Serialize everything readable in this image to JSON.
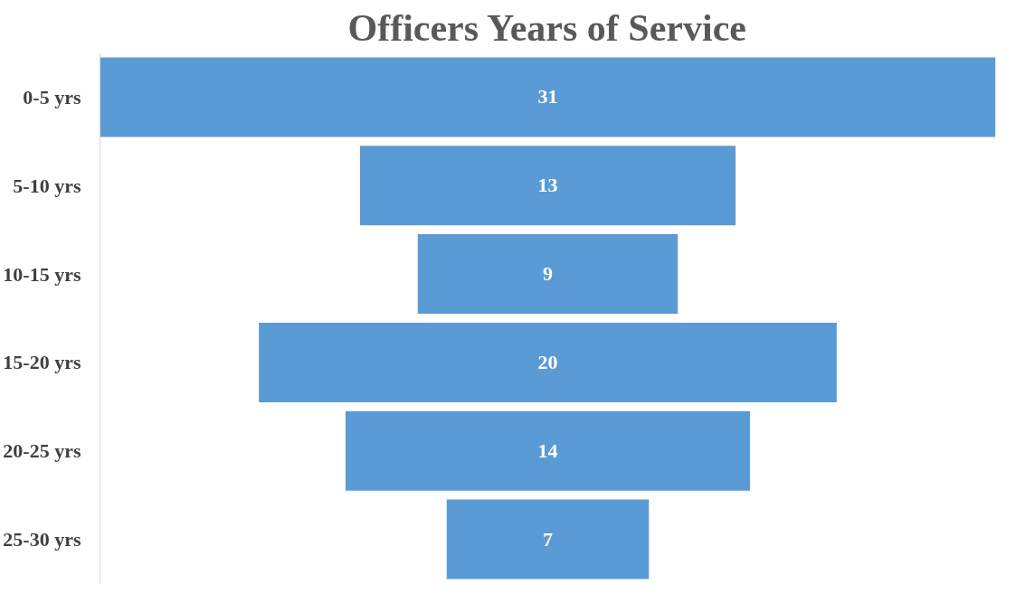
{
  "chart_data": {
    "type": "other",
    "title": "Officers Years of Service",
    "categories": [
      "0-5 yrs",
      "5-10 yrs",
      "10-15 yrs",
      "15-20 yrs",
      "20-25 yrs",
      "25-30 yrs"
    ],
    "values": [
      31,
      13,
      9,
      20,
      14,
      7
    ],
    "color": "#5b9bd5",
    "data_labels": true
  }
}
